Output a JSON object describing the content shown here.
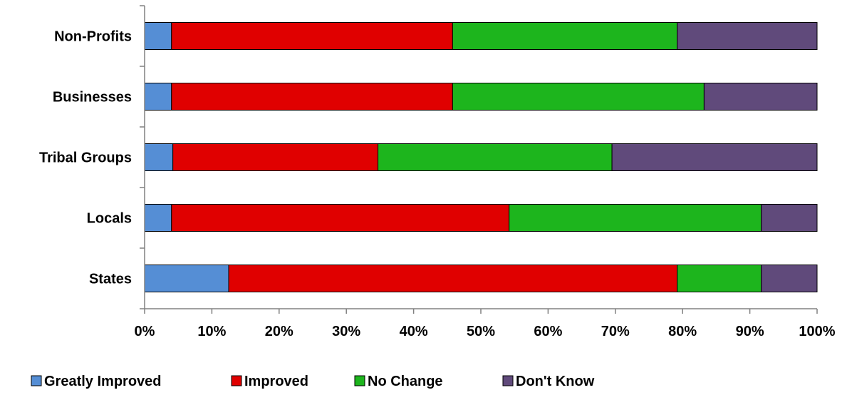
{
  "chart_data": {
    "type": "bar",
    "orientation": "horizontal",
    "stacked": "percent",
    "title": "",
    "xlabel": "",
    "ylabel": "",
    "categories": [
      "States",
      "Locals",
      "Tribal Groups",
      "Businesses",
      "Non-Profits"
    ],
    "series": [
      {
        "name": "Greatly Improved",
        "color": "#558ED5",
        "values": [
          12.5,
          4.0,
          4.2,
          4.0,
          4.0
        ]
      },
      {
        "name": "Improved",
        "color": "#E00000",
        "values": [
          66.7,
          50.2,
          30.5,
          41.8,
          41.8
        ]
      },
      {
        "name": "No Change",
        "color": "#1DB51D",
        "values": [
          12.5,
          37.5,
          34.8,
          37.4,
          33.4
        ]
      },
      {
        "name": "Don't Know",
        "color": "#604A7B",
        "values": [
          8.3,
          8.3,
          30.5,
          16.8,
          20.8
        ]
      }
    ],
    "xlim": [
      0,
      100
    ],
    "xticks": [
      "0%",
      "10%",
      "20%",
      "30%",
      "40%",
      "50%",
      "60%",
      "70%",
      "80%",
      "90%",
      "100%"
    ],
    "grid": false,
    "legend_position": "bottom"
  }
}
